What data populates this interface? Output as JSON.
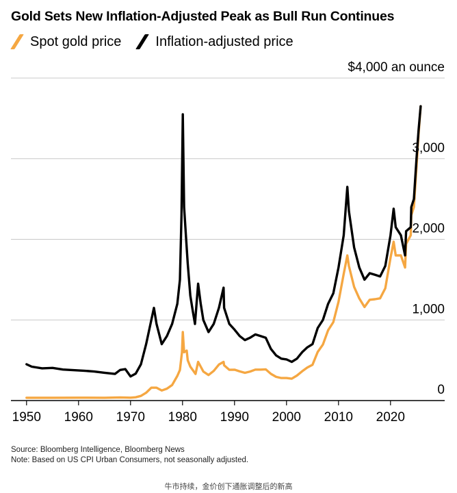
{
  "chart_data": {
    "type": "line",
    "title": "Gold Sets New Inflation-Adjusted Peak as Bull Run Continues",
    "y_unit_label": "$4,000 an ounce",
    "ylim": [
      0,
      4000
    ],
    "xlim": [
      1947,
      2027
    ],
    "y_ticks": [
      {
        "value": 0,
        "label": "0"
      },
      {
        "value": 1000,
        "label": "1,000"
      },
      {
        "value": 2000,
        "label": "2,000"
      },
      {
        "value": 3000,
        "label": "3,000"
      },
      {
        "value": 4000,
        "label": "$4,000 an ounce"
      }
    ],
    "x_ticks": [
      {
        "value": 1950,
        "label": "1950"
      },
      {
        "value": 1960,
        "label": "1960"
      },
      {
        "value": 1970,
        "label": "1970"
      },
      {
        "value": 1980,
        "label": "1980"
      },
      {
        "value": 1990,
        "label": "1990"
      },
      {
        "value": 2000,
        "label": "2000"
      },
      {
        "value": 2010,
        "label": "2010"
      },
      {
        "value": 2020,
        "label": "2020"
      }
    ],
    "grid": true,
    "legend_position": "top-left",
    "series": [
      {
        "name": "Spot gold price",
        "color": "#f5a742",
        "points": [
          [
            1950,
            35
          ],
          [
            1955,
            35
          ],
          [
            1960,
            35.3
          ],
          [
            1965,
            35.1
          ],
          [
            1968,
            39
          ],
          [
            1970,
            36
          ],
          [
            1971,
            41
          ],
          [
            1972,
            58
          ],
          [
            1973,
            97
          ],
          [
            1974,
            160
          ],
          [
            1975,
            160
          ],
          [
            1976,
            125
          ],
          [
            1977,
            148
          ],
          [
            1978,
            193
          ],
          [
            1979,
            306
          ],
          [
            1979.5,
            380
          ],
          [
            1979.9,
            600
          ],
          [
            1980.05,
            850
          ],
          [
            1980.3,
            600
          ],
          [
            1980.8,
            620
          ],
          [
            1981,
            500
          ],
          [
            1981.5,
            420
          ],
          [
            1982,
            375
          ],
          [
            1982.5,
            330
          ],
          [
            1983,
            480
          ],
          [
            1983.5,
            420
          ],
          [
            1984,
            360
          ],
          [
            1985,
            317
          ],
          [
            1986,
            368
          ],
          [
            1987,
            447
          ],
          [
            1987.9,
            480
          ],
          [
            1988,
            437
          ],
          [
            1989,
            381
          ],
          [
            1990,
            383
          ],
          [
            1991,
            362
          ],
          [
            1992,
            344
          ],
          [
            1993,
            360
          ],
          [
            1994,
            384
          ],
          [
            1995,
            384
          ],
          [
            1996,
            387
          ],
          [
            1997,
            331
          ],
          [
            1998,
            294
          ],
          [
            1999,
            279
          ],
          [
            2000,
            279
          ],
          [
            2001,
            271
          ],
          [
            2002,
            310
          ],
          [
            2003,
            363
          ],
          [
            2004,
            409
          ],
          [
            2005,
            444
          ],
          [
            2006,
            603
          ],
          [
            2007,
            695
          ],
          [
            2008,
            872
          ],
          [
            2009,
            972
          ],
          [
            2010,
            1225
          ],
          [
            2011,
            1571
          ],
          [
            2011.7,
            1800
          ],
          [
            2012,
            1669
          ],
          [
            2013,
            1411
          ],
          [
            2014,
            1266
          ],
          [
            2015,
            1160
          ],
          [
            2016,
            1250
          ],
          [
            2017,
            1257
          ],
          [
            2018,
            1268
          ],
          [
            2019,
            1393
          ],
          [
            2020,
            1770
          ],
          [
            2020.6,
            1970
          ],
          [
            2021,
            1800
          ],
          [
            2022,
            1800
          ],
          [
            2022.8,
            1650
          ],
          [
            2023,
            1943
          ],
          [
            2023.9,
            2050
          ],
          [
            2024,
            2300
          ],
          [
            2024.5,
            2400
          ],
          [
            2025,
            2900
          ],
          [
            2025.4,
            3300
          ],
          [
            2025.8,
            3650
          ]
        ]
      },
      {
        "name": "Inflation-adjusted price",
        "color": "#000000",
        "points": [
          [
            1950,
            450
          ],
          [
            1951,
            420
          ],
          [
            1953,
            400
          ],
          [
            1955,
            405
          ],
          [
            1957,
            385
          ],
          [
            1959,
            377
          ],
          [
            1961,
            370
          ],
          [
            1963,
            360
          ],
          [
            1965,
            345
          ],
          [
            1967,
            330
          ],
          [
            1968,
            380
          ],
          [
            1969,
            390
          ],
          [
            1970,
            300
          ],
          [
            1971,
            335
          ],
          [
            1972,
            450
          ],
          [
            1973,
            700
          ],
          [
            1974,
            1000
          ],
          [
            1974.5,
            1150
          ],
          [
            1975,
            950
          ],
          [
            1976,
            700
          ],
          [
            1977,
            800
          ],
          [
            1978,
            950
          ],
          [
            1979,
            1200
          ],
          [
            1979.5,
            1500
          ],
          [
            1979.8,
            2300
          ],
          [
            1980.05,
            3550
          ],
          [
            1980.3,
            2400
          ],
          [
            1980.7,
            2000
          ],
          [
            1981,
            1700
          ],
          [
            1981.5,
            1300
          ],
          [
            1982,
            1100
          ],
          [
            1982.4,
            950
          ],
          [
            1983,
            1450
          ],
          [
            1983.5,
            1200
          ],
          [
            1984,
            1000
          ],
          [
            1985,
            850
          ],
          [
            1986,
            950
          ],
          [
            1987,
            1150
          ],
          [
            1987.9,
            1400
          ],
          [
            1988,
            1150
          ],
          [
            1989,
            950
          ],
          [
            1990,
            880
          ],
          [
            1991,
            800
          ],
          [
            1992,
            750
          ],
          [
            1993,
            780
          ],
          [
            1994,
            820
          ],
          [
            1995,
            800
          ],
          [
            1996,
            780
          ],
          [
            1997,
            640
          ],
          [
            1998,
            560
          ],
          [
            1999,
            520
          ],
          [
            2000,
            510
          ],
          [
            2001,
            480
          ],
          [
            2002,
            520
          ],
          [
            2003,
            600
          ],
          [
            2004,
            660
          ],
          [
            2005,
            700
          ],
          [
            2006,
            900
          ],
          [
            2007,
            1000
          ],
          [
            2008,
            1200
          ],
          [
            2009,
            1330
          ],
          [
            2010,
            1650
          ],
          [
            2011,
            2050
          ],
          [
            2011.7,
            2650
          ],
          [
            2012,
            2350
          ],
          [
            2013,
            1900
          ],
          [
            2014,
            1650
          ],
          [
            2015,
            1500
          ],
          [
            2016,
            1580
          ],
          [
            2017,
            1560
          ],
          [
            2018,
            1540
          ],
          [
            2019,
            1670
          ],
          [
            2020,
            2050
          ],
          [
            2020.6,
            2380
          ],
          [
            2021,
            2150
          ],
          [
            2022,
            2050
          ],
          [
            2022.8,
            1800
          ],
          [
            2023,
            2100
          ],
          [
            2023.9,
            2150
          ],
          [
            2024,
            2400
          ],
          [
            2024.5,
            2500
          ],
          [
            2025,
            3000
          ],
          [
            2025.4,
            3350
          ],
          [
            2025.8,
            3650
          ]
        ]
      }
    ],
    "source_note": "Source: Bloomberg Intelligence, Bloomberg News",
    "footnote": "Note: Based on US CPI Urban Consumers, not seasonally adjusted.",
    "caption": "牛市持续，金价创下通胀调整后的新高"
  }
}
